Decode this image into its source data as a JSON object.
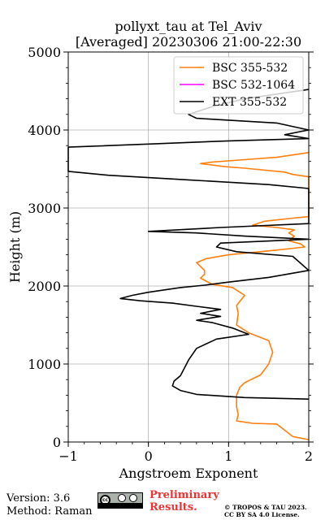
{
  "chart_data": {
    "type": "line",
    "title": "pollyxt_tau at Tel_Aviv",
    "subtitle": "[Averaged] 20230306 21:00-22:30",
    "xlabel": "Angstroem Exponent",
    "ylabel": "Height (m)",
    "xlim": [
      -1,
      2
    ],
    "ylim": [
      0,
      5000
    ],
    "xticks": [
      -1,
      0,
      1,
      2
    ],
    "xtick_labels": [
      "−1",
      "0",
      "1",
      "2"
    ],
    "yticks": [
      0,
      1000,
      2000,
      3000,
      4000,
      5000
    ],
    "ytick_labels": [
      "0",
      "1000",
      "2000",
      "3000",
      "4000",
      "5000"
    ],
    "grid": true,
    "legend_position": "top-right",
    "series": [
      {
        "name": "BSC 355-532",
        "color": "#ff7f0e",
        "points": [
          [
            2.0,
            30
          ],
          [
            1.8,
            70
          ],
          [
            1.6,
            230
          ],
          [
            1.3,
            240
          ],
          [
            1.1,
            270
          ],
          [
            1.12,
            350
          ],
          [
            1.1,
            450
          ],
          [
            1.1,
            600
          ],
          [
            1.14,
            700
          ],
          [
            1.2,
            760
          ],
          [
            1.4,
            860
          ],
          [
            1.5,
            1000
          ],
          [
            1.55,
            1150
          ],
          [
            1.5,
            1300
          ],
          [
            1.25,
            1400
          ],
          [
            1.1,
            1500
          ],
          [
            1.12,
            1650
          ],
          [
            1.1,
            1750
          ],
          [
            1.2,
            1880
          ],
          [
            1.05,
            1980
          ],
          [
            0.8,
            2020
          ],
          [
            0.65,
            2100
          ],
          [
            0.7,
            2150
          ],
          [
            0.7,
            2200
          ],
          [
            0.6,
            2300
          ],
          [
            0.72,
            2350
          ],
          [
            1.0,
            2400
          ],
          [
            1.6,
            2460
          ],
          [
            1.95,
            2500
          ],
          [
            1.9,
            2540
          ],
          [
            1.75,
            2580
          ],
          [
            1.82,
            2640
          ],
          [
            1.75,
            2680
          ],
          [
            1.82,
            2720
          ],
          [
            1.6,
            2750
          ],
          [
            1.3,
            2780
          ],
          [
            1.45,
            2830
          ],
          [
            1.8,
            2870
          ],
          [
            2.0,
            2890
          ],
          [
            2.0,
            3400
          ],
          [
            1.8,
            3430
          ],
          [
            1.7,
            3460
          ],
          [
            1.2,
            3510
          ],
          [
            0.95,
            3530
          ],
          [
            0.65,
            3570
          ],
          [
            0.8,
            3590
          ],
          [
            1.2,
            3620
          ],
          [
            1.6,
            3650
          ],
          [
            1.8,
            3680
          ],
          [
            2.0,
            3710
          ]
        ]
      },
      {
        "name": "BSC 532-1064",
        "color": "#ff00ff",
        "points": []
      },
      {
        "name": "EXT 355-532",
        "color": "#000000",
        "points": [
          [
            2.0,
            550
          ],
          [
            1.2,
            570
          ],
          [
            0.6,
            610
          ],
          [
            0.4,
            660
          ],
          [
            0.3,
            720
          ],
          [
            0.32,
            780
          ],
          [
            0.4,
            850
          ],
          [
            0.45,
            950
          ],
          [
            0.5,
            1050
          ],
          [
            0.6,
            1200
          ],
          [
            0.85,
            1320
          ],
          [
            1.25,
            1380
          ],
          [
            1.05,
            1460
          ],
          [
            0.8,
            1530
          ],
          [
            0.6,
            1560
          ],
          [
            0.9,
            1610
          ],
          [
            0.65,
            1650
          ],
          [
            0.9,
            1700
          ],
          [
            0.6,
            1740
          ],
          [
            0.3,
            1780
          ],
          [
            -0.1,
            1810
          ],
          [
            -0.35,
            1840
          ],
          [
            -0.2,
            1880
          ],
          [
            0.0,
            1920
          ],
          [
            0.4,
            1980
          ],
          [
            0.7,
            2010
          ],
          [
            1.0,
            2050
          ],
          [
            1.5,
            2110
          ],
          [
            2.0,
            2200
          ],
          [
            1.8,
            2380
          ],
          [
            1.1,
            2440
          ],
          [
            0.85,
            2500
          ],
          [
            0.9,
            2550
          ],
          [
            2.0,
            2600
          ],
          [
            1.2,
            2640
          ],
          [
            0.6,
            2680
          ],
          [
            0.0,
            2700
          ],
          [
            0.9,
            2750
          ],
          [
            2.0,
            2800
          ],
          [
            2.0,
            3250
          ],
          [
            1.5,
            3300
          ],
          [
            0.5,
            3360
          ],
          [
            -0.5,
            3420
          ],
          [
            -1.0,
            3470
          ],
          [
            -1.0,
            3780
          ],
          [
            0.0,
            3820
          ],
          [
            1.0,
            3860
          ],
          [
            2.0,
            3890
          ],
          [
            1.7,
            3940
          ],
          [
            1.9,
            3980
          ],
          [
            2.0,
            4000
          ],
          [
            1.6,
            4090
          ],
          [
            0.6,
            4150
          ],
          [
            0.5,
            4200
          ],
          [
            0.8,
            4300
          ],
          [
            1.2,
            4400
          ],
          [
            2.0,
            4520
          ]
        ]
      }
    ]
  },
  "footer": {
    "version": "Version: 3.6",
    "method": "Method: Raman",
    "preliminary_line1": "Preliminary",
    "preliminary_line2": "Results.",
    "copyright_line1": "© TROPOS & TAU 2023.",
    "copyright_line2": "CC BY SA 4.0 License.",
    "preliminary_color": "#ee3333"
  }
}
